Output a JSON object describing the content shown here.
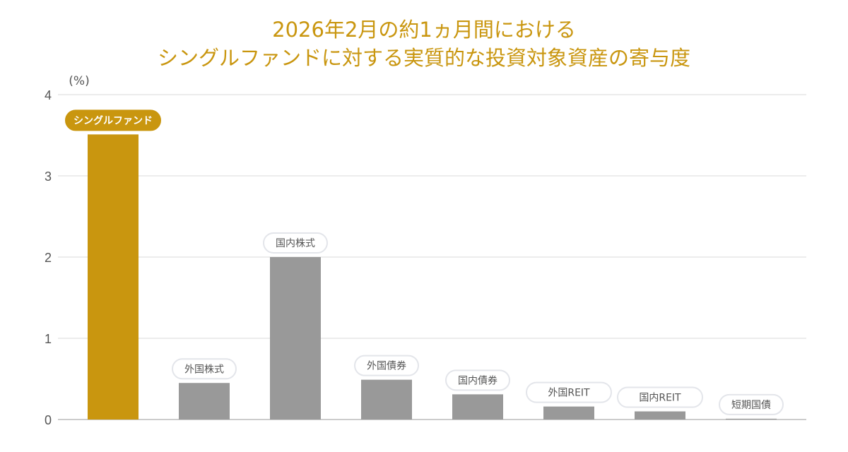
{
  "chart_data": {
    "type": "bar",
    "title_line1": "2026年2月の約1ヵ月間における",
    "title_line2": "シングルファンドに対する実質的な投資対象資産の寄与度",
    "ylabel": "(%)",
    "ylim": [
      0,
      4
    ],
    "yticks": [
      "0",
      "1",
      "2",
      "3",
      "4"
    ],
    "grid": true,
    "categories": [
      "シングルファンド",
      "外国株式",
      "国内株式",
      "外国債券",
      "国内債券",
      "外国REIT",
      "国内REIT",
      "短期国債"
    ],
    "values": [
      3.51,
      0.45,
      2.0,
      0.49,
      0.31,
      0.16,
      0.1,
      0.01
    ],
    "colors": [
      "#c9960f",
      "#999999",
      "#999999",
      "#999999",
      "#999999",
      "#999999",
      "#999999",
      "#999999"
    ]
  }
}
